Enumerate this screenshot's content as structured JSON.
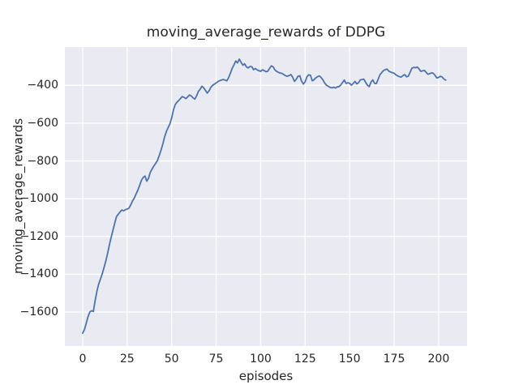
{
  "chart_data": {
    "type": "line",
    "title": "moving_average_rewards of DDPG",
    "xlabel": "episodes",
    "ylabel": "moving_average_rewards",
    "grid": true,
    "legend": "none",
    "style": "seaborn-darkgrid",
    "colors": {
      "axes_background": "#eaeaf2",
      "gridline": "#ffffff",
      "line": "#4c72b0",
      "text": "#262626",
      "figure_background": "#ffffff"
    },
    "xlim": [
      -10,
      216
    ],
    "ylim": [
      -1780,
      -197
    ],
    "xticks": {
      "values": [
        0,
        25,
        50,
        75,
        100,
        125,
        150,
        175,
        200
      ],
      "labels": [
        "0",
        "25",
        "50",
        "75",
        "100",
        "125",
        "150",
        "175",
        "200"
      ]
    },
    "yticks": {
      "values": [
        -400,
        -600,
        -800,
        -1000,
        -1200,
        -1400,
        -1600
      ],
      "labels": [
        "−400",
        "−600",
        "−800",
        "−1000",
        "−1200",
        "−1400",
        "−1600"
      ]
    },
    "series": [
      {
        "name": "moving_average_rewards",
        "color": "#4c72b0",
        "linewidth": 1.8,
        "x": [
          0,
          1,
          2,
          3,
          4,
          5,
          6,
          7,
          8,
          9,
          10,
          11,
          12,
          13,
          14,
          15,
          16,
          17,
          18,
          19,
          20,
          21,
          22,
          23,
          24,
          25,
          26,
          27,
          28,
          29,
          30,
          31,
          32,
          33,
          34,
          35,
          36,
          37,
          38,
          39,
          40,
          41,
          42,
          43,
          44,
          45,
          46,
          47,
          48,
          49,
          50,
          51,
          52,
          53,
          54,
          55,
          56,
          57,
          58,
          59,
          60,
          61,
          62,
          63,
          64,
          65,
          66,
          67,
          68,
          69,
          70,
          71,
          72,
          73,
          74,
          75,
          76,
          77,
          78,
          79,
          80,
          81,
          82,
          83,
          84,
          85,
          86,
          87,
          88,
          89,
          90,
          91,
          92,
          93,
          94,
          95,
          96,
          97,
          98,
          99,
          100,
          101,
          102,
          103,
          104,
          105,
          106,
          107,
          108,
          109,
          110,
          111,
          112,
          113,
          114,
          115,
          116,
          117,
          118,
          119,
          120,
          121,
          122,
          123,
          124,
          125,
          126,
          127,
          128,
          129,
          130,
          131,
          132,
          133,
          134,
          135,
          136,
          137,
          138,
          139,
          140,
          141,
          142,
          143,
          144,
          145,
          146,
          147,
          148,
          149,
          150,
          151,
          152,
          153,
          154,
          155,
          156,
          157,
          158,
          159,
          160,
          161,
          162,
          163,
          164,
          165,
          166,
          167,
          168,
          169,
          170,
          171,
          172,
          173,
          174,
          175,
          176,
          177,
          178,
          179,
          180,
          181,
          182,
          183,
          184,
          185,
          186,
          187,
          188,
          189,
          190,
          191,
          192,
          193,
          194,
          195,
          196,
          197,
          198,
          199,
          200,
          201,
          202,
          203,
          204
        ],
        "y": [
          -1712,
          -1692,
          -1660,
          -1625,
          -1600,
          -1593,
          -1597,
          -1540,
          -1490,
          -1452,
          -1425,
          -1398,
          -1365,
          -1330,
          -1290,
          -1245,
          -1205,
          -1168,
          -1130,
          -1095,
          -1082,
          -1070,
          -1060,
          -1064,
          -1058,
          -1055,
          -1050,
          -1033,
          -1012,
          -997,
          -975,
          -955,
          -930,
          -903,
          -888,
          -880,
          -907,
          -892,
          -860,
          -843,
          -827,
          -813,
          -798,
          -772,
          -744,
          -712,
          -674,
          -645,
          -624,
          -604,
          -573,
          -530,
          -502,
          -489,
          -480,
          -469,
          -459,
          -464,
          -470,
          -461,
          -451,
          -456,
          -466,
          -473,
          -456,
          -432,
          -421,
          -405,
          -413,
          -427,
          -441,
          -429,
          -411,
          -400,
          -394,
          -387,
          -380,
          -375,
          -372,
          -369,
          -372,
          -376,
          -359,
          -336,
          -310,
          -292,
          -271,
          -281,
          -261,
          -278,
          -293,
          -286,
          -302,
          -308,
          -300,
          -301,
          -317,
          -311,
          -318,
          -322,
          -326,
          -318,
          -322,
          -328,
          -325,
          -310,
          -297,
          -302,
          -318,
          -326,
          -331,
          -335,
          -337,
          -343,
          -349,
          -352,
          -348,
          -343,
          -357,
          -379,
          -368,
          -352,
          -349,
          -378,
          -393,
          -381,
          -355,
          -344,
          -347,
          -376,
          -370,
          -360,
          -354,
          -350,
          -359,
          -371,
          -388,
          -399,
          -405,
          -411,
          -413,
          -410,
          -414,
          -408,
          -407,
          -398,
          -385,
          -372,
          -390,
          -386,
          -389,
          -399,
          -390,
          -379,
          -392,
          -386,
          -371,
          -369,
          -367,
          -384,
          -399,
          -407,
          -383,
          -371,
          -389,
          -391,
          -368,
          -344,
          -333,
          -322,
          -317,
          -314,
          -325,
          -329,
          -333,
          -336,
          -344,
          -350,
          -354,
          -356,
          -348,
          -343,
          -355,
          -351,
          -330,
          -309,
          -305,
          -307,
          -303,
          -313,
          -326,
          -323,
          -321,
          -331,
          -341,
          -338,
          -334,
          -336,
          -347,
          -361,
          -358,
          -352,
          -356,
          -367,
          -372
        ]
      }
    ]
  }
}
